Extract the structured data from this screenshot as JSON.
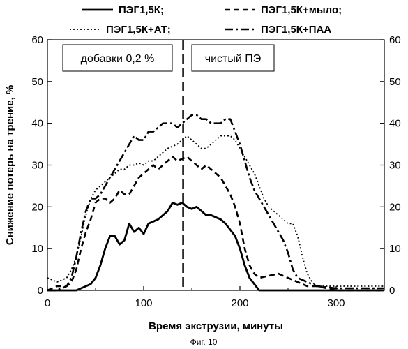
{
  "chart_data": {
    "type": "line",
    "title": "",
    "xlabel": "Время экструзии, минуты",
    "ylabel": "Снижение потерь на трение, %",
    "caption": "Фиг. 10",
    "xlim": [
      0,
      350
    ],
    "ylim": [
      0,
      60
    ],
    "xticks": [
      0,
      100,
      200,
      300
    ],
    "yticks": [
      0,
      10,
      20,
      30,
      40,
      50,
      60
    ],
    "grid": false,
    "legend_position": "top",
    "vline_x": 141,
    "annotations": [
      {
        "text": "добавки 0,2 %",
        "position": "left-of-line"
      },
      {
        "text": "чистый ПЭ",
        "position": "right-of-line"
      }
    ],
    "series": [
      {
        "name": "ПЭГ1,5К;",
        "style": "solid",
        "x": [
          0,
          10,
          20,
          25,
          30,
          40,
          45,
          50,
          55,
          60,
          65,
          70,
          75,
          80,
          85,
          90,
          95,
          100,
          105,
          110,
          115,
          120,
          125,
          130,
          135,
          140,
          145,
          150,
          155,
          160,
          165,
          170,
          175,
          180,
          185,
          190,
          195,
          200,
          205,
          210,
          215,
          220,
          230,
          250,
          300,
          350
        ],
        "y": [
          0,
          0,
          0,
          0,
          0,
          1,
          1.5,
          3,
          6,
          10,
          13,
          13,
          11,
          12,
          16,
          14,
          15,
          13.5,
          16,
          16.5,
          17,
          18,
          19,
          21,
          20.5,
          21,
          20,
          19.5,
          20,
          19,
          18,
          18,
          17.5,
          17,
          16,
          14.5,
          13,
          10,
          6,
          3,
          1.5,
          0,
          0,
          0,
          0,
          0
        ]
      },
      {
        "name": "ПЭГ1,5К+мыло;",
        "style": "dashed",
        "x": [
          0,
          10,
          20,
          25,
          30,
          35,
          40,
          45,
          50,
          55,
          60,
          65,
          70,
          75,
          80,
          85,
          90,
          95,
          100,
          105,
          110,
          115,
          120,
          125,
          130,
          135,
          140,
          145,
          150,
          155,
          160,
          165,
          170,
          175,
          180,
          185,
          190,
          195,
          200,
          205,
          210,
          215,
          220,
          230,
          240,
          250,
          260,
          270,
          280,
          300,
          350
        ],
        "y": [
          0,
          1,
          1,
          2,
          5,
          10,
          14,
          17,
          21,
          22,
          22,
          21,
          22,
          24,
          23,
          23,
          25,
          27,
          28,
          29,
          30,
          29,
          30,
          31,
          32,
          31,
          31.5,
          32,
          31,
          30,
          29,
          30,
          29,
          28,
          27,
          25,
          23,
          20,
          16,
          10,
          6,
          4,
          3,
          3.5,
          4,
          3,
          2,
          1,
          1,
          0,
          0
        ]
      },
      {
        "name": "ПЭГ1,5К+АТ;",
        "style": "dotted",
        "x": [
          0,
          10,
          20,
          25,
          30,
          35,
          40,
          45,
          50,
          55,
          60,
          65,
          70,
          75,
          80,
          85,
          90,
          95,
          100,
          105,
          110,
          115,
          120,
          125,
          130,
          135,
          140,
          145,
          150,
          155,
          160,
          165,
          170,
          175,
          180,
          185,
          190,
          195,
          200,
          205,
          210,
          215,
          220,
          225,
          230,
          235,
          240,
          245,
          250,
          255,
          260,
          265,
          270,
          275,
          280,
          290,
          300,
          320,
          350
        ],
        "y": [
          3,
          2,
          3,
          5,
          8,
          13,
          18,
          22,
          24,
          25,
          26,
          27,
          28,
          29,
          29,
          30,
          30,
          30.5,
          30,
          31,
          31,
          32,
          33,
          34,
          34.5,
          35,
          36,
          37,
          36,
          35,
          34,
          34,
          35,
          36,
          37,
          37,
          37,
          36,
          34,
          32,
          30,
          28,
          25,
          22,
          20,
          19,
          18,
          17,
          16,
          16,
          13,
          8,
          4,
          2,
          1,
          1,
          1,
          1,
          1
        ]
      },
      {
        "name": "ПЭГ1,5К+ПАА",
        "style": "dashdot",
        "x": [
          0,
          10,
          20,
          25,
          30,
          35,
          40,
          45,
          50,
          55,
          60,
          65,
          70,
          75,
          80,
          85,
          90,
          95,
          100,
          105,
          110,
          115,
          120,
          125,
          130,
          135,
          140,
          145,
          150,
          155,
          160,
          165,
          170,
          175,
          180,
          185,
          190,
          195,
          200,
          205,
          210,
          215,
          220,
          225,
          230,
          235,
          240,
          245,
          250,
          255,
          260,
          270,
          280,
          300,
          320,
          340,
          350
        ],
        "y": [
          0,
          0,
          1,
          3,
          8,
          14,
          19,
          22,
          22,
          23,
          25,
          27,
          29,
          31,
          33,
          35,
          37,
          36,
          36,
          38,
          38,
          39,
          40,
          40,
          40,
          39,
          40,
          41,
          42,
          42,
          41,
          41,
          40,
          40,
          40,
          41,
          41,
          38,
          35,
          31,
          27,
          24,
          22,
          20,
          18,
          16,
          14,
          12,
          9,
          5,
          3,
          2,
          1,
          0.5,
          0.5,
          0.5,
          0.5
        ]
      }
    ]
  }
}
